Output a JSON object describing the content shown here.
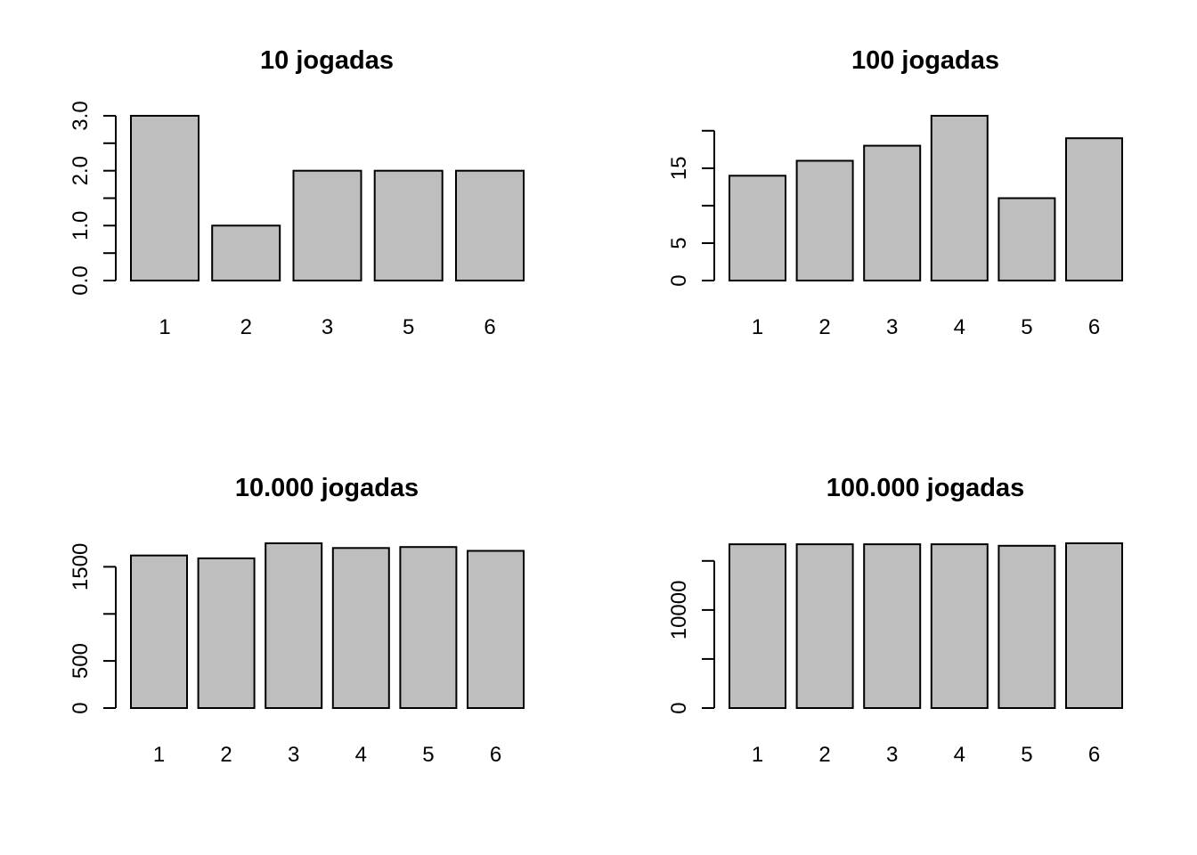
{
  "chart_data": [
    {
      "type": "bar",
      "title": "10 jogadas",
      "categories": [
        "1",
        "2",
        "3",
        "5",
        "6"
      ],
      "values": [
        3,
        1,
        2,
        2,
        2
      ],
      "yticks": [
        0,
        0.5,
        1,
        1.5,
        2,
        2.5,
        3
      ],
      "ytick_labels": [
        "0.0",
        "",
        "1.0",
        "",
        "2.0",
        "",
        "3.0"
      ],
      "ylim": [
        0,
        3
      ],
      "xlabel": "",
      "ylabel": "",
      "grid": false,
      "legend": "none",
      "bar_color": "#bebebe"
    },
    {
      "type": "bar",
      "title": "100 jogadas",
      "categories": [
        "1",
        "2",
        "3",
        "4",
        "5",
        "6"
      ],
      "values": [
        14,
        16,
        18,
        22,
        11,
        19
      ],
      "yticks": [
        0,
        5,
        10,
        15,
        20
      ],
      "ytick_labels": [
        "0",
        "5",
        "",
        "15",
        ""
      ],
      "ylim": [
        0,
        22
      ],
      "xlabel": "",
      "ylabel": "",
      "grid": false,
      "legend": "none",
      "bar_color": "#bebebe"
    },
    {
      "type": "bar",
      "title": "10.000 jogadas",
      "categories": [
        "1",
        "2",
        "3",
        "4",
        "5",
        "6"
      ],
      "values": [
        1620,
        1590,
        1750,
        1700,
        1710,
        1670
      ],
      "yticks": [
        0,
        500,
        1000,
        1500
      ],
      "ytick_labels": [
        "0",
        "500",
        "",
        "1500"
      ],
      "ylim": [
        0,
        1750
      ],
      "xlabel": "",
      "ylabel": "",
      "grid": false,
      "legend": "none",
      "bar_color": "#bebebe"
    },
    {
      "type": "bar",
      "title": "100.000 jogadas",
      "categories": [
        "1",
        "2",
        "3",
        "4",
        "5",
        "6"
      ],
      "values": [
        16700,
        16700,
        16700,
        16700,
        16550,
        16800
      ],
      "yticks": [
        0,
        5000,
        10000,
        15000
      ],
      "ytick_labels": [
        "0",
        "",
        "10000",
        ""
      ],
      "ylim": [
        0,
        16800
      ],
      "xlabel": "",
      "ylabel": "",
      "grid": false,
      "legend": "none",
      "bar_color": "#bebebe"
    }
  ]
}
